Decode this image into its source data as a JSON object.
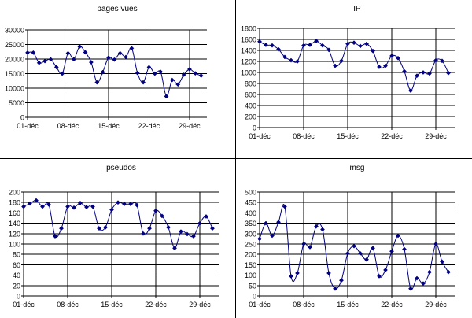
{
  "chart_data": [
    {
      "type": "line",
      "title": "pages vues",
      "ylim": [
        0,
        30000
      ],
      "yticks": [
        0,
        5000,
        10000,
        15000,
        20000,
        25000,
        30000
      ],
      "xtick_labels": [
        "01-déc",
        "08-déc",
        "15-déc",
        "22-déc",
        "29-déc"
      ],
      "xtick_days": [
        1,
        8,
        15,
        22,
        29
      ],
      "xlim": [
        1,
        32
      ],
      "series": [
        {
          "color": "#000080",
          "x": [
            1,
            2,
            3,
            4,
            5,
            6,
            7,
            8,
            9,
            10,
            11,
            12,
            13,
            14,
            15,
            16,
            17,
            18,
            19,
            20,
            21,
            22,
            23,
            24,
            25,
            26,
            27,
            28,
            29,
            30,
            31
          ],
          "values": [
            22200,
            22200,
            18700,
            19300,
            19900,
            17200,
            15000,
            22000,
            19900,
            24300,
            22300,
            18900,
            12000,
            15500,
            20500,
            19800,
            22000,
            20700,
            23700,
            15200,
            12000,
            17200,
            15000,
            15600,
            7200,
            12800,
            11300,
            14600,
            16500,
            15100,
            14300
          ]
        }
      ],
      "grid": true,
      "legend": "none"
    },
    {
      "type": "line",
      "title": "IP",
      "ylim": [
        0,
        1800
      ],
      "yticks": [
        0,
        200,
        400,
        600,
        800,
        1000,
        1200,
        1400,
        1600,
        1800
      ],
      "xtick_labels": [
        "01-déc",
        "08-déc",
        "15-déc",
        "22-déc",
        "29-déc"
      ],
      "xtick_days": [
        1,
        8,
        15,
        22,
        29
      ],
      "xlim": [
        1,
        32
      ],
      "series": [
        {
          "color": "#000080",
          "x": [
            1,
            2,
            3,
            4,
            5,
            6,
            7,
            8,
            9,
            10,
            11,
            12,
            13,
            14,
            15,
            16,
            17,
            18,
            19,
            20,
            21,
            22,
            23,
            24,
            25,
            26,
            27,
            28,
            29,
            30,
            31
          ],
          "values": [
            1560,
            1500,
            1490,
            1420,
            1280,
            1220,
            1200,
            1490,
            1500,
            1570,
            1490,
            1410,
            1120,
            1210,
            1520,
            1540,
            1480,
            1520,
            1390,
            1100,
            1120,
            1300,
            1260,
            1020,
            670,
            940,
            1000,
            980,
            1220,
            1210,
            990
          ]
        }
      ],
      "grid": true,
      "legend": "none"
    },
    {
      "type": "line",
      "title": "pseudos",
      "ylim": [
        0,
        200
      ],
      "yticks": [
        0,
        20,
        40,
        60,
        80,
        100,
        120,
        140,
        160,
        180,
        200
      ],
      "xtick_labels": [
        "01-déc",
        "08-déc",
        "15-déc",
        "22-déc",
        "29-déc"
      ],
      "xtick_days": [
        1,
        8,
        15,
        22,
        29
      ],
      "xlim": [
        1,
        32
      ],
      "series": [
        {
          "color": "#000080",
          "x": [
            1,
            2,
            3,
            4,
            5,
            6,
            7,
            8,
            9,
            10,
            11,
            12,
            13,
            14,
            15,
            16,
            17,
            18,
            19,
            20,
            21,
            22,
            23,
            24,
            25,
            26,
            27,
            28,
            29,
            30,
            31
          ],
          "values": [
            172,
            178,
            184,
            172,
            176,
            115,
            130,
            172,
            170,
            179,
            171,
            172,
            130,
            132,
            166,
            180,
            177,
            177,
            175,
            120,
            130,
            164,
            154,
            132,
            92,
            124,
            119,
            115,
            140,
            153,
            130
          ]
        }
      ],
      "grid": true,
      "legend": "none"
    },
    {
      "type": "line",
      "title": "msg",
      "ylim": [
        0,
        500
      ],
      "yticks": [
        0,
        50,
        100,
        150,
        200,
        250,
        300,
        350,
        400,
        450,
        500
      ],
      "xtick_labels": [
        "01-déc",
        "08-déc",
        "15-déc",
        "22-déc",
        "29-déc"
      ],
      "xtick_days": [
        1,
        8,
        15,
        22,
        29
      ],
      "xlim": [
        1,
        32
      ],
      "series": [
        {
          "color": "#000080",
          "x": [
            1,
            2,
            3,
            4,
            5,
            6,
            7,
            8,
            9,
            10,
            11,
            12,
            13,
            14,
            15,
            16,
            17,
            18,
            19,
            20,
            21,
            22,
            23,
            24,
            25,
            26,
            27,
            28,
            29,
            30,
            31
          ],
          "values": [
            275,
            350,
            290,
            355,
            430,
            95,
            110,
            250,
            235,
            335,
            320,
            110,
            35,
            75,
            205,
            240,
            205,
            175,
            230,
            95,
            125,
            215,
            290,
            225,
            35,
            85,
            60,
            115,
            250,
            165,
            115
          ]
        }
      ],
      "grid": true,
      "legend": "none"
    }
  ]
}
